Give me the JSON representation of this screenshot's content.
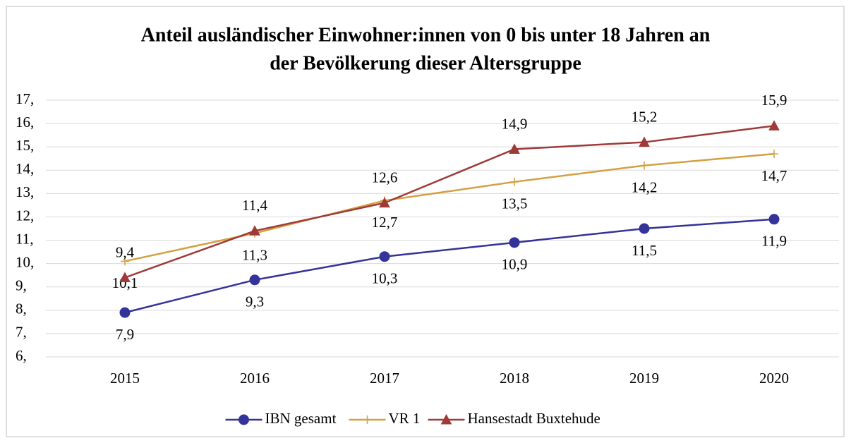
{
  "chart_data": {
    "type": "line",
    "title": [
      "Anteil ausländischer Einwohner:innen von 0 bis unter 18 Jahren an",
      "der Bevölkerung dieser Altersgruppe"
    ],
    "categories": [
      "2015",
      "2016",
      "2017",
      "2018",
      "2019",
      "2020"
    ],
    "series": [
      {
        "name": "IBN gesamt",
        "color": "#33339a",
        "marker": "circle",
        "label_position": "below",
        "values": [
          7.9,
          9.3,
          10.3,
          10.9,
          11.5,
          11.9
        ],
        "value_labels": [
          "7,9",
          "9,3",
          "10,3",
          "10,9",
          "11,5",
          "11,9"
        ]
      },
      {
        "name": "VR 1",
        "color": "#d4a040",
        "marker": "plus",
        "label_position": "below",
        "values": [
          10.1,
          11.3,
          12.7,
          13.5,
          14.2,
          14.7
        ],
        "value_labels": [
          "10,1",
          "11,3",
          "12,7",
          "13,5",
          "14,2",
          "14,7"
        ]
      },
      {
        "name": "Hansestadt Buxtehude",
        "color": "#9e3a38",
        "marker": "triangle",
        "label_position": "above",
        "values": [
          9.4,
          11.4,
          12.6,
          14.9,
          15.2,
          15.9
        ],
        "value_labels": [
          "9,4",
          "11,4",
          "12,6",
          "14,9",
          "15,2",
          "15,9"
        ]
      }
    ],
    "ylim": [
      6,
      17
    ],
    "yticks": [
      {
        "value": 6,
        "label": "6,"
      },
      {
        "value": 7,
        "label": "7,"
      },
      {
        "value": 8,
        "label": "8,"
      },
      {
        "value": 9,
        "label": "9,"
      },
      {
        "value": 10,
        "label": "10,"
      },
      {
        "value": 11,
        "label": "11,"
      },
      {
        "value": 12,
        "label": "12,"
      },
      {
        "value": 13,
        "label": "13,"
      },
      {
        "value": 14,
        "label": "14,"
      },
      {
        "value": 15,
        "label": "15,"
      },
      {
        "value": 16,
        "label": "16,"
      },
      {
        "value": 17,
        "label": "17,"
      }
    ],
    "grid": true,
    "legend": "bottom"
  }
}
